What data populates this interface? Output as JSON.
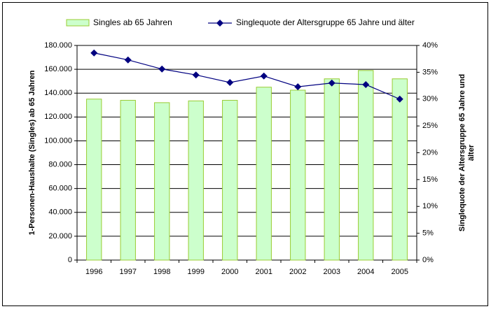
{
  "chart_data": {
    "type": "bar",
    "categories": [
      "1996",
      "1997",
      "1998",
      "1999",
      "2000",
      "2001",
      "2002",
      "2003",
      "2004",
      "2005"
    ],
    "series": [
      {
        "name": "Singles ab 65 Jahren",
        "type": "bar",
        "color": "#ccffcc",
        "border": "#99cc33",
        "axis": "y",
        "values": [
          135000,
          134000,
          132000,
          133500,
          134000,
          145000,
          142500,
          152000,
          159000,
          152000
        ]
      },
      {
        "name": "Singlequote der Altersgruppe 65 Jahre und älter",
        "type": "line",
        "color": "#000080",
        "axis": "y2",
        "values": [
          38.6,
          37.3,
          35.6,
          34.5,
          33.1,
          34.3,
          32.3,
          33.0,
          32.7,
          30.0
        ]
      }
    ],
    "ylabel": "1-Personen-Haushalte (Singles) ab 65 Jahren",
    "y2label": [
      "Singlequote der Altersgruppe 65 Jahre und",
      "älter"
    ],
    "ylim": [
      0,
      180000
    ],
    "yticks": [
      {
        "value": 0,
        "label": "0"
      },
      {
        "value": 20000,
        "label": "20.000"
      },
      {
        "value": 40000,
        "label": "40.000"
      },
      {
        "value": 60000,
        "label": "60.000"
      },
      {
        "value": 80000,
        "label": "80.000"
      },
      {
        "value": 100000,
        "label": "100.000"
      },
      {
        "value": 120000,
        "label": "120.000"
      },
      {
        "value": 140000,
        "label": "140.000"
      },
      {
        "value": 160000,
        "label": "160.000"
      },
      {
        "value": 180000,
        "label": "180.000"
      }
    ],
    "y2lim": [
      0,
      40
    ],
    "y2ticks": [
      {
        "value": 0,
        "label": "0%"
      },
      {
        "value": 5,
        "label": "5%"
      },
      {
        "value": 10,
        "label": "10%"
      },
      {
        "value": 15,
        "label": "15%"
      },
      {
        "value": 20,
        "label": "20%"
      },
      {
        "value": 25,
        "label": "25%"
      },
      {
        "value": 30,
        "label": "30%"
      },
      {
        "value": 35,
        "label": "35%"
      },
      {
        "value": 40,
        "label": "40%"
      }
    ],
    "grid": true,
    "legend": "top"
  }
}
